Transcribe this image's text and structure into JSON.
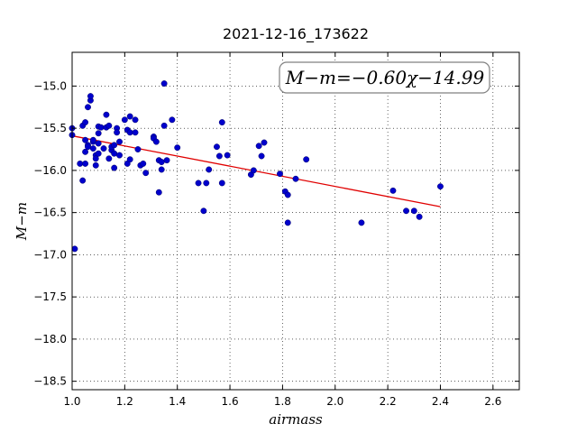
{
  "chart_data": {
    "type": "scatter",
    "title": "2021-12-16_173622",
    "xlabel": "airmass",
    "ylabel": "M−m",
    "annotation": "M−m=−0.60χ−14.99",
    "xlim": [
      1.0,
      2.7
    ],
    "ylim": [
      -18.6,
      -14.6
    ],
    "xticks": [
      1.0,
      1.2,
      1.4,
      1.6,
      1.8,
      2.0,
      2.2,
      2.4,
      2.6
    ],
    "xtick_labels": [
      "1.0",
      "1.2",
      "1.4",
      "1.6",
      "1.8",
      "2.0",
      "2.2",
      "2.4",
      "2.6"
    ],
    "yticks": [
      -15.0,
      -15.5,
      -16.0,
      -16.5,
      -17.0,
      -17.5,
      -18.0,
      -18.5
    ],
    "ytick_labels": [
      "−15.0",
      "−15.5",
      "−16.0",
      "−16.5",
      "−17.0",
      "−17.5",
      "−18.0",
      "−18.5"
    ],
    "grid": true,
    "points": [
      [
        1.0,
        -15.5
      ],
      [
        1.0,
        -15.58
      ],
      [
        1.01,
        -16.93
      ],
      [
        1.03,
        -15.92
      ],
      [
        1.04,
        -15.47
      ],
      [
        1.04,
        -16.12
      ],
      [
        1.05,
        -15.64
      ],
      [
        1.05,
        -15.78
      ],
      [
        1.05,
        -15.92
      ],
      [
        1.05,
        -15.43
      ],
      [
        1.06,
        -15.7
      ],
      [
        1.06,
        -15.25
      ],
      [
        1.06,
        -15.72
      ],
      [
        1.07,
        -15.17
      ],
      [
        1.07,
        -15.12
      ],
      [
        1.08,
        -15.66
      ],
      [
        1.08,
        -15.74
      ],
      [
        1.08,
        -15.64
      ],
      [
        1.09,
        -15.82
      ],
      [
        1.09,
        -15.86
      ],
      [
        1.09,
        -15.94
      ],
      [
        1.1,
        -15.48
      ],
      [
        1.1,
        -15.56
      ],
      [
        1.1,
        -15.8
      ],
      [
        1.1,
        -15.68
      ],
      [
        1.11,
        -15.49
      ],
      [
        1.12,
        -15.74
      ],
      [
        1.13,
        -15.34
      ],
      [
        1.13,
        -15.49
      ],
      [
        1.14,
        -15.47
      ],
      [
        1.14,
        -15.86
      ],
      [
        1.15,
        -15.76
      ],
      [
        1.15,
        -15.72
      ],
      [
        1.16,
        -15.8
      ],
      [
        1.16,
        -15.7
      ],
      [
        1.16,
        -15.97
      ],
      [
        1.17,
        -15.5
      ],
      [
        1.17,
        -15.55
      ],
      [
        1.18,
        -15.66
      ],
      [
        1.18,
        -15.82
      ],
      [
        1.2,
        -15.4
      ],
      [
        1.21,
        -15.52
      ],
      [
        1.21,
        -15.92
      ],
      [
        1.22,
        -15.36
      ],
      [
        1.22,
        -15.55
      ],
      [
        1.22,
        -15.87
      ],
      [
        1.24,
        -15.4
      ],
      [
        1.24,
        -15.55
      ],
      [
        1.25,
        -15.75
      ],
      [
        1.26,
        -15.94
      ],
      [
        1.27,
        -15.92
      ],
      [
        1.28,
        -16.03
      ],
      [
        1.31,
        -15.6
      ],
      [
        1.31,
        -15.62
      ],
      [
        1.32,
        -15.66
      ],
      [
        1.33,
        -15.88
      ],
      [
        1.33,
        -16.26
      ],
      [
        1.34,
        -15.9
      ],
      [
        1.34,
        -15.99
      ],
      [
        1.35,
        -15.47
      ],
      [
        1.35,
        -14.97
      ],
      [
        1.36,
        -15.88
      ],
      [
        1.38,
        -15.4
      ],
      [
        1.4,
        -15.73
      ],
      [
        1.48,
        -16.15
      ],
      [
        1.5,
        -16.48
      ],
      [
        1.51,
        -16.15
      ],
      [
        1.52,
        -15.99
      ],
      [
        1.55,
        -15.72
      ],
      [
        1.56,
        -15.83
      ],
      [
        1.57,
        -15.43
      ],
      [
        1.57,
        -16.15
      ],
      [
        1.59,
        -15.82
      ],
      [
        1.68,
        -16.05
      ],
      [
        1.69,
        -16.0
      ],
      [
        1.71,
        -15.71
      ],
      [
        1.72,
        -15.83
      ],
      [
        1.73,
        -15.67
      ],
      [
        1.79,
        -16.04
      ],
      [
        1.81,
        -16.25
      ],
      [
        1.82,
        -16.29
      ],
      [
        1.82,
        -16.62
      ],
      [
        1.85,
        -16.1
      ],
      [
        1.89,
        -15.87
      ],
      [
        2.1,
        -16.62
      ],
      [
        2.22,
        -16.24
      ],
      [
        2.27,
        -16.48
      ],
      [
        2.3,
        -16.48
      ],
      [
        2.32,
        -16.55
      ],
      [
        2.4,
        -16.19
      ]
    ],
    "fit_line": {
      "slope": -0.6,
      "intercept": -14.99,
      "x_range": [
        1.0,
        2.4
      ]
    },
    "colors": {
      "points": "#0000cc",
      "fit": "#e00000"
    }
  }
}
